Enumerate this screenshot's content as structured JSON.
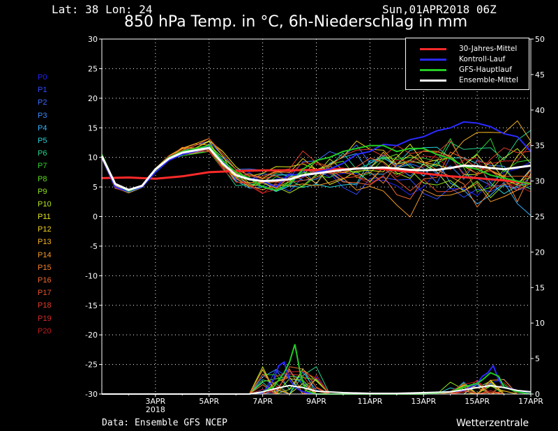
{
  "header": {
    "latlon": "Lat: 38 Lon: 24",
    "date": "Sun,01APR2018 06Z",
    "title": "850 hPa Temp. in °C, 6h-Niederschlag in mm"
  },
  "footer": {
    "source": "Data: Ensemble GFS NCEP",
    "brand": "Wetterzentrale"
  },
  "members": [
    {
      "name": "P0",
      "color": "#2323ff"
    },
    {
      "name": "P1",
      "color": "#2f4bff"
    },
    {
      "name": "P2",
      "color": "#3a6dff"
    },
    {
      "name": "P3",
      "color": "#3b8cff"
    },
    {
      "name": "P4",
      "color": "#33b4ff"
    },
    {
      "name": "P5",
      "color": "#27d2d8"
    },
    {
      "name": "P6",
      "color": "#22d68c"
    },
    {
      "name": "P7",
      "color": "#2ed32e"
    },
    {
      "name": "P8",
      "color": "#5ce01c"
    },
    {
      "name": "P9",
      "color": "#8ee61e"
    },
    {
      "name": "P10",
      "color": "#b8e81e"
    },
    {
      "name": "P11",
      "color": "#e6e61e"
    },
    {
      "name": "P12",
      "color": "#f2d21e"
    },
    {
      "name": "P13",
      "color": "#f5b422"
    },
    {
      "name": "P14",
      "color": "#f59a26"
    },
    {
      "name": "P15",
      "color": "#f5822a"
    },
    {
      "name": "P16",
      "color": "#f0682c"
    },
    {
      "name": "P17",
      "color": "#ea512c"
    },
    {
      "name": "P18",
      "color": "#e23c2c"
    },
    {
      "name": "P19",
      "color": "#d42a2a"
    },
    {
      "name": "P20",
      "color": "#c21c1c"
    }
  ],
  "legend": [
    {
      "label": "30-Jahres-Mittel",
      "color": "#ff2a2a"
    },
    {
      "label": "Kontroll-Lauf",
      "color": "#2a2aff"
    },
    {
      "label": "GFS-Hauptlauf",
      "color": "#22cc22"
    },
    {
      "label": "Ensemble-Mittel",
      "color": "#ffffff"
    }
  ],
  "chart_data": {
    "type": "line",
    "title": "850 hPa Temp. in °C, 6h-Niederschlag in mm",
    "x_ticks": [
      {
        "day": 2,
        "label": "3APR",
        "sub": "2018"
      },
      {
        "day": 4,
        "label": "5APR",
        "sub": ""
      },
      {
        "day": 6,
        "label": "7APR",
        "sub": ""
      },
      {
        "day": 8,
        "label": "9APR",
        "sub": ""
      },
      {
        "day": 10,
        "label": "11APR",
        "sub": ""
      },
      {
        "day": 12,
        "label": "13APR",
        "sub": ""
      },
      {
        "day": 14,
        "label": "15APR",
        "sub": ""
      },
      {
        "day": 16,
        "label": "17APR",
        "sub": ""
      }
    ],
    "xlim_days": [
      0,
      16
    ],
    "ylim_left": [
      -30,
      30
    ],
    "ylim_right": [
      0,
      50
    ],
    "left_ticks": [
      -30,
      -25,
      -20,
      -15,
      -10,
      -5,
      0,
      5,
      10,
      15,
      20,
      25,
      30
    ],
    "right_ticks": [
      0,
      5,
      10,
      15,
      20,
      25,
      30,
      35,
      40,
      45,
      50
    ],
    "grid": true,
    "legend_position": "top-right",
    "series": [
      {
        "name": "30-Jahres-Mittel",
        "color": "#ff2a2a",
        "width": 3,
        "x": [
          0,
          1,
          2,
          3,
          4,
          5,
          6,
          7,
          8,
          9,
          10,
          11,
          12,
          13,
          14,
          15,
          16
        ],
        "y": [
          6.5,
          6.6,
          6.4,
          6.8,
          7.5,
          7.7,
          7.8,
          7.8,
          7.9,
          8.0,
          8.2,
          7.8,
          7.3,
          6.8,
          6.5,
          6.1,
          5.6
        ]
      },
      {
        "name": "Kontroll-Lauf",
        "color": "#2a2aff",
        "width": 2,
        "x": [
          0,
          0.5,
          1,
          1.5,
          2,
          2.5,
          3,
          3.5,
          4,
          4.5,
          5,
          5.5,
          6,
          6.5,
          7,
          7.5,
          8,
          8.5,
          9,
          9.5,
          10,
          10.5,
          11,
          11.5,
          12,
          12.5,
          13,
          13.5,
          14,
          14.5,
          15,
          15.5,
          16
        ],
        "y": [
          10,
          5,
          4.2,
          5,
          7.5,
          9.5,
          10.5,
          11,
          11.8,
          9.2,
          7,
          6.5,
          6,
          5,
          7.2,
          6.8,
          7.5,
          8,
          9,
          10.5,
          11,
          12.2,
          12,
          13,
          13.5,
          14.5,
          15,
          16,
          15.8,
          15.2,
          14,
          13.5,
          11
        ]
      },
      {
        "name": "GFS-Hauptlauf",
        "color": "#22cc22",
        "width": 2,
        "x": [
          0,
          0.5,
          1,
          1.5,
          2,
          2.5,
          3,
          3.5,
          4,
          4.5,
          5,
          5.5,
          6,
          6.5,
          7,
          7.5,
          8,
          8.5,
          9,
          9.5,
          10,
          10.5,
          11,
          11.5,
          12,
          12.5,
          13,
          13.5,
          14,
          14.5,
          15,
          15.5,
          16
        ],
        "y": [
          10.5,
          5.5,
          4.3,
          5.2,
          8,
          10,
          11,
          11.5,
          12,
          9.5,
          7.5,
          6.5,
          5,
          4.5,
          5.5,
          8,
          9.5,
          10,
          11,
          11.5,
          12,
          12,
          11,
          11.5,
          11.5,
          10.5,
          9.8,
          8.5,
          8,
          7,
          6.5,
          6,
          5.5
        ]
      },
      {
        "name": "Ensemble-Mittel",
        "color": "#ffffff",
        "width": 3,
        "x": [
          0,
          0.5,
          1,
          1.5,
          2,
          2.5,
          3,
          3.5,
          4,
          4.5,
          5,
          5.5,
          6,
          6.5,
          7,
          7.5,
          8,
          8.5,
          9,
          9.5,
          10,
          10.5,
          11,
          11.5,
          12,
          12.5,
          13,
          13.5,
          14,
          14.5,
          15,
          15.5,
          16
        ],
        "y": [
          10.2,
          5.5,
          4.5,
          5.2,
          8,
          9.8,
          10.8,
          11.2,
          11.6,
          9,
          7,
          6.3,
          6,
          6.1,
          6.3,
          7,
          7.3,
          7.6,
          7.9,
          8.1,
          8.2,
          8.3,
          8.1,
          7.9,
          7.8,
          7.9,
          8.2,
          8.6,
          8.5,
          8.2,
          8.0,
          8.3,
          8.6
        ]
      }
    ],
    "precip_series": [
      {
        "name": "Kontroll-Lauf",
        "color": "#2a2aff",
        "x": [
          0,
          5.5,
          6,
          6.2,
          6.4,
          6.6,
          6.8,
          7,
          7.2,
          7.4,
          7.6,
          8,
          10,
          12,
          13.5,
          14,
          14.2,
          14.4,
          14.6,
          14.8,
          15,
          15.5,
          16
        ],
        "y": [
          0,
          0,
          0.2,
          1,
          2,
          4,
          4.5,
          2,
          1,
          0.5,
          0.2,
          0,
          0,
          0,
          0.5,
          1.5,
          2.5,
          3,
          4,
          2,
          1,
          0.5,
          0
        ]
      },
      {
        "name": "GFS-Hauptlauf",
        "color": "#22cc22",
        "x": [
          0,
          5.5,
          6,
          6.4,
          6.8,
          7,
          7.2,
          7.4,
          7.6,
          8,
          10,
          12,
          13,
          13.5,
          14,
          14.2,
          14.5,
          14.8,
          15,
          15.5,
          16
        ],
        "y": [
          0,
          0,
          0.3,
          1,
          3,
          4.5,
          7,
          3,
          0.5,
          0,
          0,
          0,
          0.3,
          1,
          1.5,
          2,
          3,
          2.5,
          1,
          0.3,
          0
        ]
      },
      {
        "name": "Ensemble-Mittel",
        "color": "#ffffff",
        "x": [
          0,
          5.5,
          6,
          6.5,
          7,
          7.5,
          8,
          9,
          10,
          11,
          12,
          13,
          13.5,
          14,
          14.5,
          15,
          15.5,
          16
        ],
        "y": [
          0,
          0,
          0.3,
          0.8,
          1.2,
          0.9,
          0.4,
          0.2,
          0.1,
          0.1,
          0.2,
          0.3,
          0.6,
          0.9,
          1.2,
          0.9,
          0.5,
          0.3
        ]
      }
    ]
  }
}
